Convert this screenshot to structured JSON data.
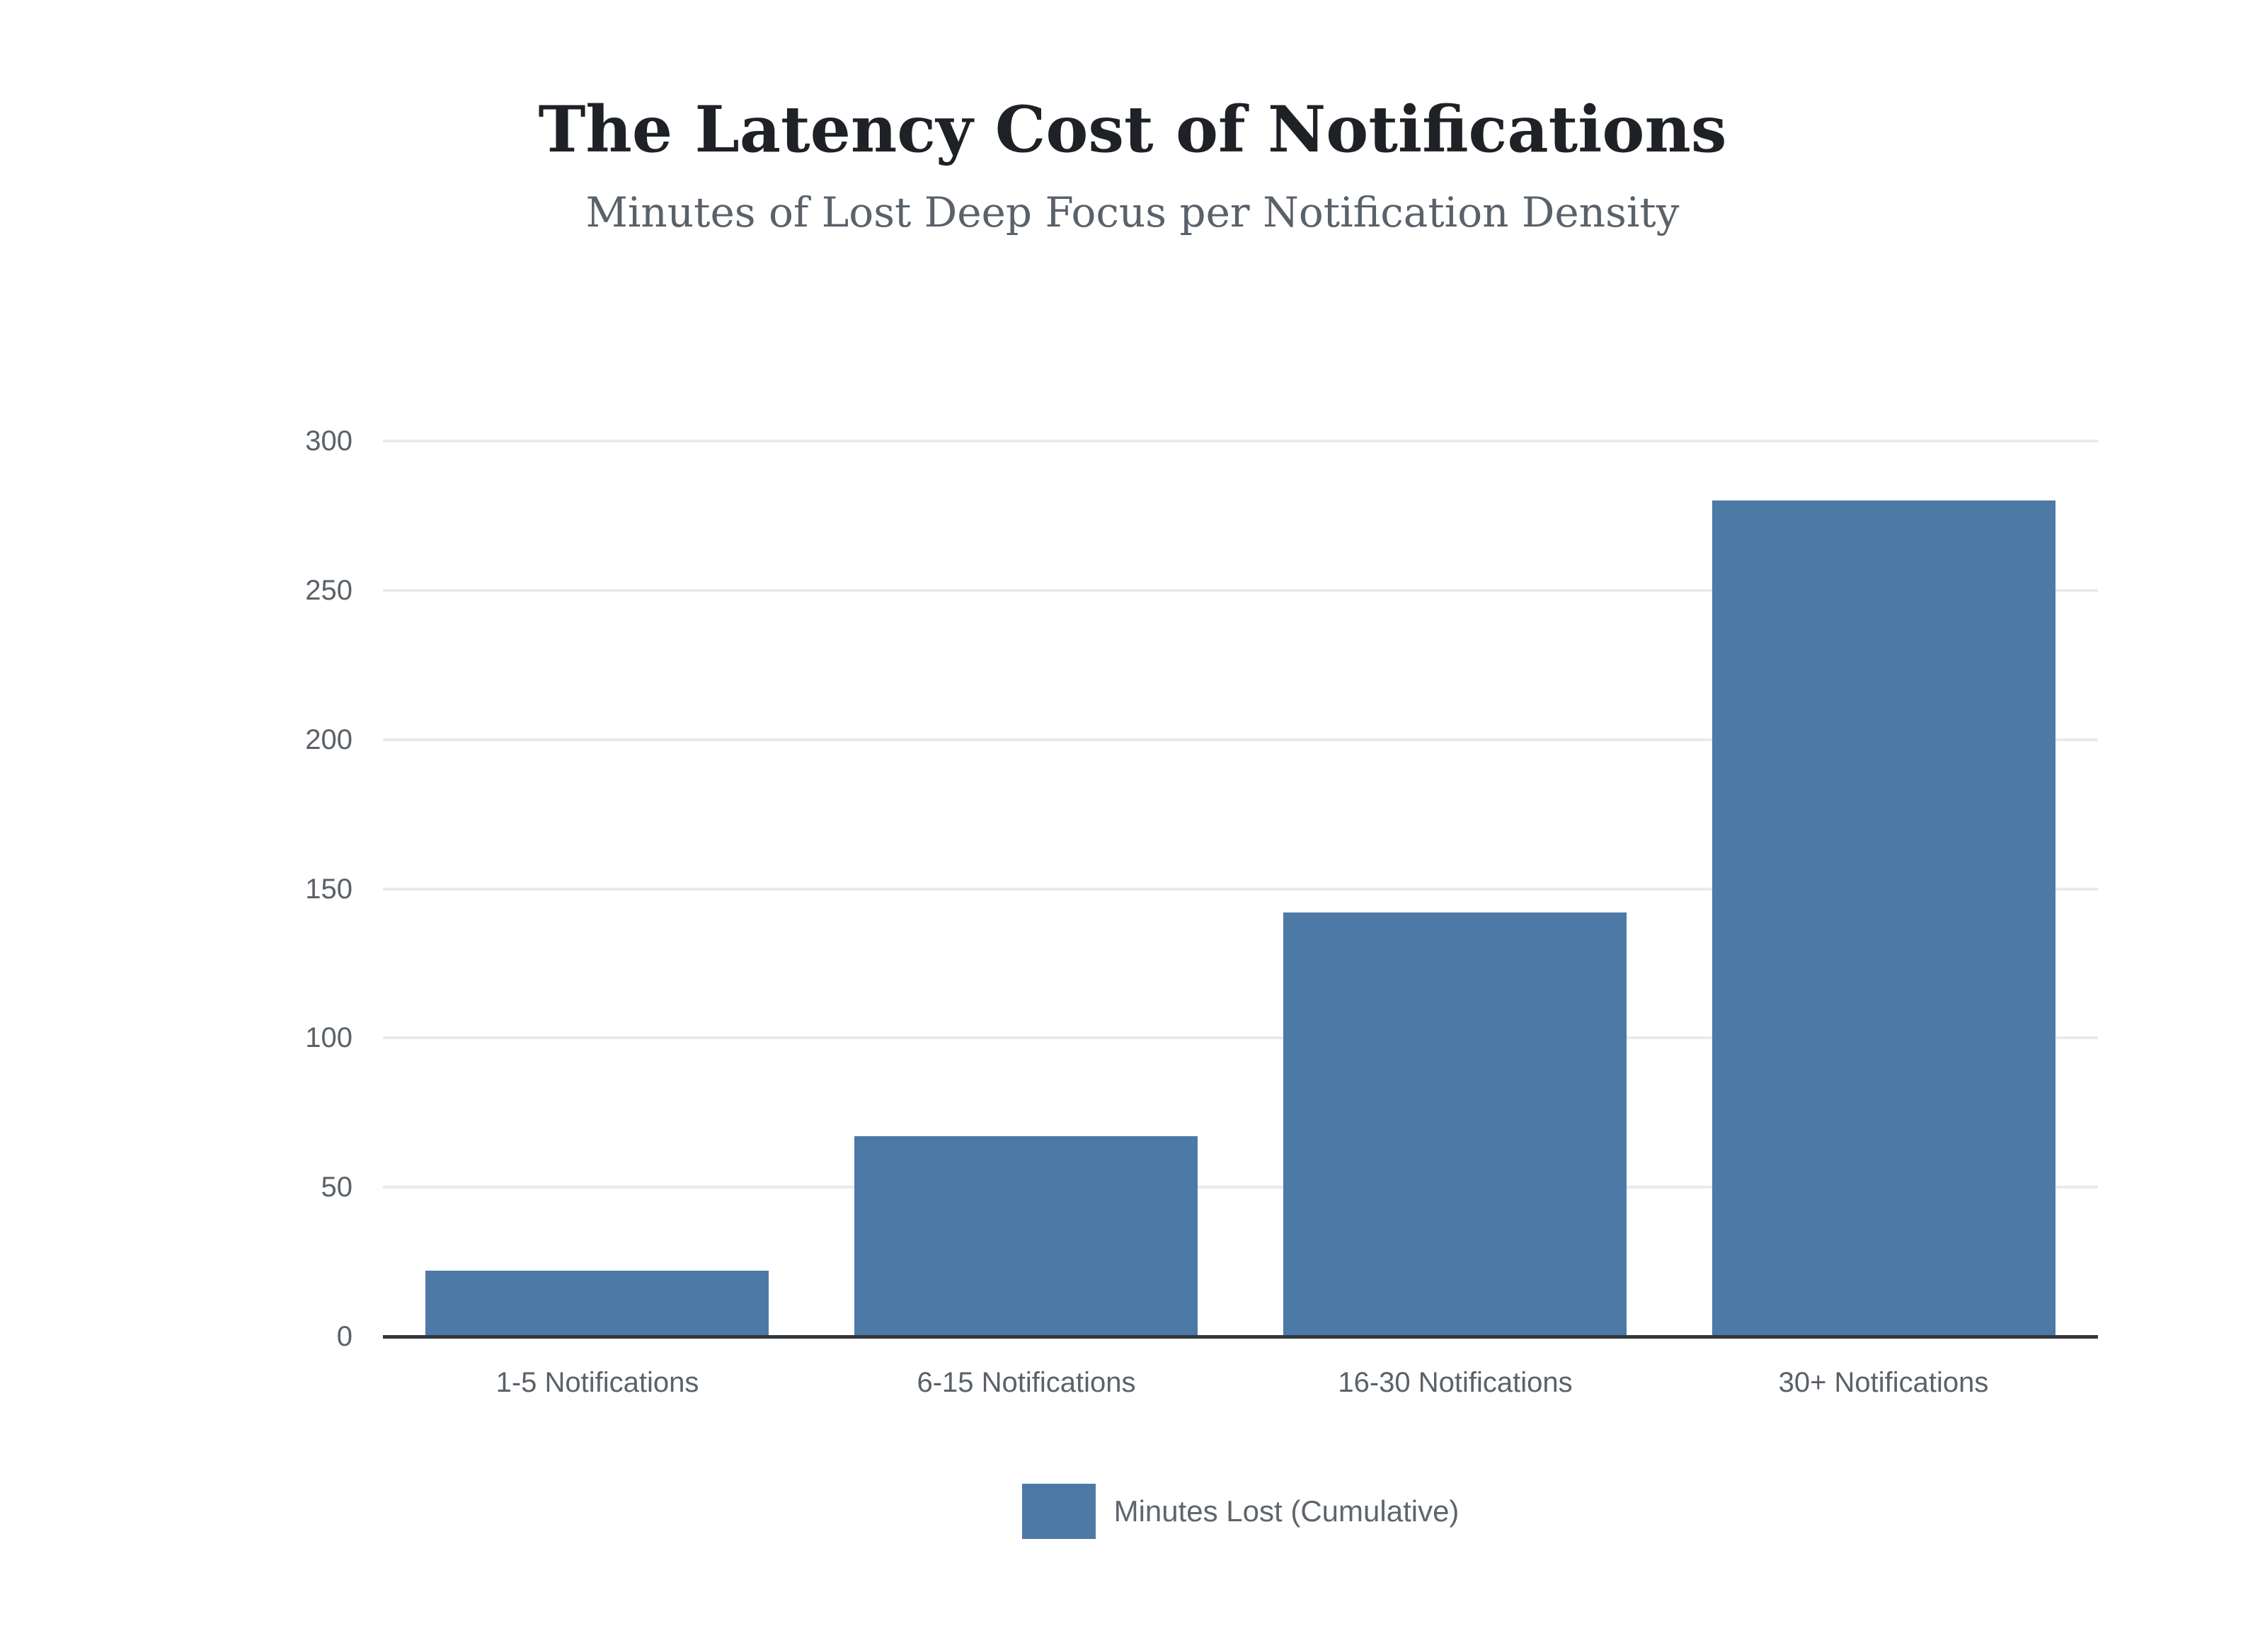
{
  "page": {
    "title": "The Latency Cost of Notifications",
    "subtitle": "Minutes of Lost Deep Focus per Notification Density"
  },
  "chart_data": {
    "type": "bar",
    "title": "The Latency Cost of Notifications",
    "subtitle": "Minutes of Lost Deep Focus per Notification Density",
    "categories": [
      "1-5 Notifications",
      "6-15 Notifications",
      "16-30 Notifications",
      "30+ Notifications"
    ],
    "series": [
      {
        "name": "Minutes Lost (Cumulative)",
        "values": [
          22,
          67,
          142,
          280
        ]
      }
    ],
    "xlabel": "",
    "ylabel": "",
    "ylim": [
      0,
      300
    ],
    "yticks": [
      0,
      50,
      100,
      150,
      200,
      250,
      300
    ],
    "grid": true,
    "legend_position": "bottom",
    "bar_color": "#4D79A7",
    "gridline_color": "#E8EAEE",
    "axis_line_color": "#33373C",
    "tick_label_color": "#5B6168",
    "title_color": "#1E2126",
    "subtitle_color": "#5A6169"
  },
  "legend": {
    "label": "Minutes Lost (Cumulative)",
    "swatch_color": "#4D79A7"
  }
}
